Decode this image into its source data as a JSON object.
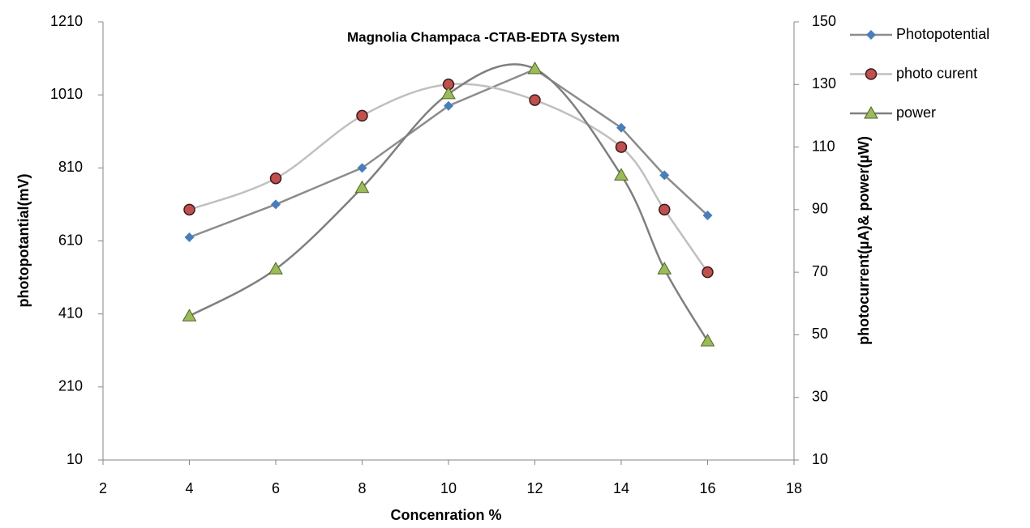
{
  "chart_data": {
    "type": "line",
    "title": "Magnolia Champaca -CTAB-EDTA System",
    "x_label": "Concenration %",
    "y_label": "photopotantial(mV)",
    "y2_label": "photocurrent(µA)& power(µW)",
    "x": [
      4,
      6,
      8,
      10,
      12,
      14,
      15,
      16
    ],
    "xlim": [
      2,
      18
    ],
    "xticks": [
      2,
      4,
      6,
      8,
      10,
      12,
      14,
      16,
      18
    ],
    "ylim": [
      10,
      1210
    ],
    "yticks": [
      10,
      210,
      410,
      610,
      810,
      1010,
      1210
    ],
    "y2lim": [
      10,
      150
    ],
    "y2ticks": [
      10,
      30,
      50,
      70,
      90,
      110,
      130,
      150
    ],
    "grid": false,
    "legend": "right",
    "series": [
      {
        "name": "Photopotential",
        "color": "#4a7ebb",
        "line_color": "#8c8c8c",
        "marker": "diamond",
        "smooth": false,
        "values": [
          620,
          710,
          810,
          980,
          1080,
          920,
          790,
          680
        ]
      },
      {
        "name": "photo curent",
        "color": "#c0504d",
        "line_color": "#c0c0c0",
        "marker": "circle",
        "smooth": true,
        "axis": "y2",
        "values": [
          90,
          100,
          120,
          130,
          125,
          110,
          90,
          70
        ]
      },
      {
        "name": "power",
        "color": "#9bbb59",
        "line_color": "#7f7f7f",
        "marker": "triangle",
        "smooth": true,
        "axis": "y2",
        "values": [
          56,
          71,
          97,
          127,
          135,
          101,
          71,
          48
        ]
      }
    ]
  }
}
